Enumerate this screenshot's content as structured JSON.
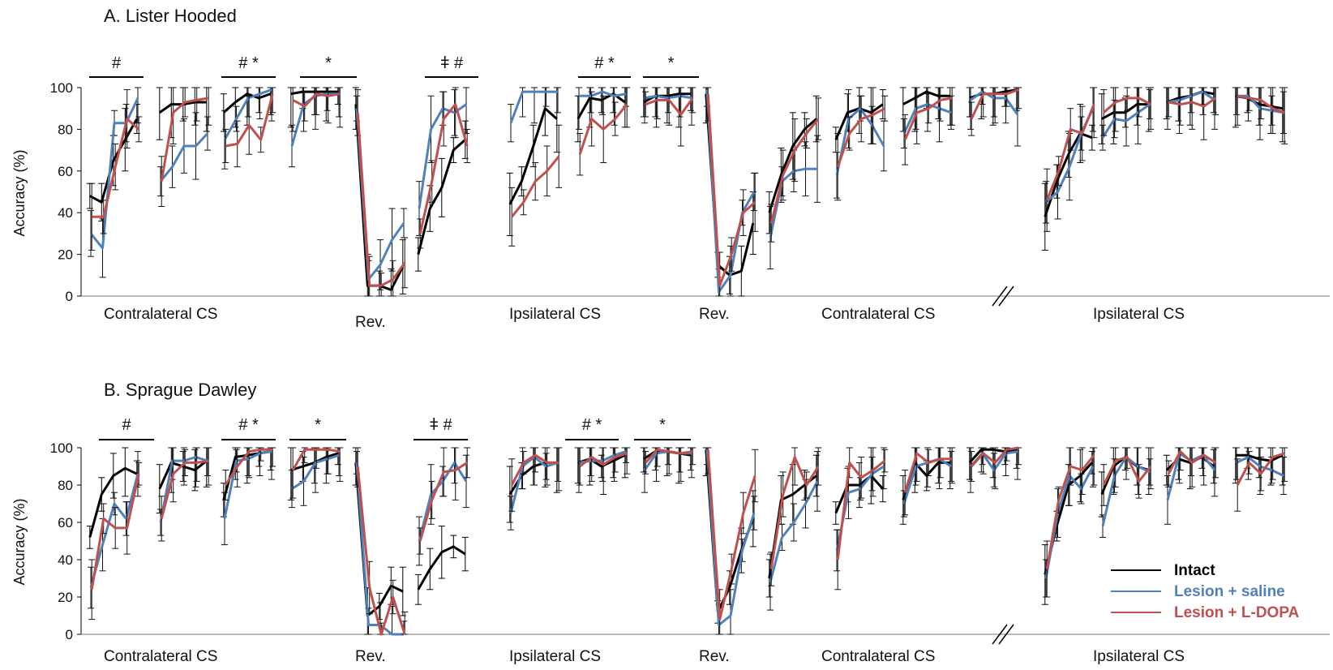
{
  "colors": {
    "intact": "#000000",
    "saline": "#4f81bd",
    "ldopa": "#c0504d",
    "axis": "#000000"
  },
  "legend": [
    {
      "key": "intact",
      "label": "Intact"
    },
    {
      "key": "saline",
      "label": "Lesion + saline"
    },
    {
      "key": "ldopa",
      "label": "Lesion + L-DOPA"
    }
  ],
  "chart_data": [
    {
      "type": "line",
      "title": "A. Lister Hooded",
      "ylabel": "Accuracy (%)",
      "ylim": [
        0,
        100
      ],
      "yticks": [
        "0",
        "20",
        "40",
        "60",
        "80",
        "100"
      ],
      "phases": [
        "Contralateral CS",
        "Rev.",
        "Ipsilateral CS",
        "Rev.",
        "Contralateral CS",
        "Ipsilateral CS"
      ],
      "significance": [
        "#",
        "# *",
        "*",
        "ǂ #",
        "# *",
        "*"
      ],
      "axis_break": true,
      "blocks": [
        {
          "intact": [
            48,
            45,
            65,
            75,
            85
          ],
          "saline": [
            30,
            23,
            83,
            83,
            95
          ],
          "ldopa": [
            38,
            38,
            62,
            85,
            80
          ]
        },
        {
          "intact": [
            88,
            92,
            92,
            93,
            93
          ],
          "saline": [
            55,
            62,
            72,
            72,
            78
          ],
          "ldopa": [
            55,
            88,
            93,
            94,
            95
          ]
        },
        {
          "intact": [
            88,
            93,
            97,
            95,
            97
          ],
          "saline": [
            75,
            85,
            95,
            97,
            99
          ],
          "ldopa": [
            72,
            73,
            82,
            75,
            97
          ]
        },
        {
          "intact": [
            97,
            98,
            98,
            98,
            98
          ],
          "saline": [
            72,
            92,
            96,
            97,
            97
          ],
          "ldopa": [
            94,
            91,
            97,
            96,
            97
          ]
        },
        {
          "intact": [
            92,
            5,
            5,
            3,
            14
          ],
          "saline": [
            90,
            8,
            15,
            27,
            35
          ],
          "ldopa": [
            88,
            5,
            5,
            8,
            16
          ]
        },
        {
          "intact": [
            20,
            42,
            52,
            70,
            75
          ],
          "saline": [
            42,
            80,
            90,
            88,
            92
          ],
          "ldopa": [
            30,
            55,
            85,
            92,
            72
          ]
        },
        {
          "intact": [
            44,
            55,
            72,
            90,
            85
          ],
          "saline": [
            83,
            98,
            98,
            98,
            98
          ],
          "ldopa": [
            38,
            45,
            55,
            60,
            67
          ]
        },
        {
          "intact": [
            85,
            95,
            94,
            97,
            93
          ],
          "saline": [
            96,
            96,
            98,
            96,
            97
          ],
          "ldopa": [
            68,
            85,
            80,
            85,
            92
          ]
        },
        {
          "intact": [
            93,
            96,
            96,
            97,
            97
          ],
          "saline": [
            95,
            96,
            95,
            96,
            95
          ],
          "ldopa": [
            92,
            94,
            94,
            87,
            95
          ]
        },
        {
          "intact": [
            97,
            15,
            10,
            12,
            35
          ],
          "saline": [
            99,
            2,
            10,
            40,
            50
          ],
          "ldopa": [
            97,
            5,
            20,
            40,
            45
          ]
        },
        {
          "intact": [
            40,
            58,
            72,
            80,
            85
          ],
          "saline": [
            28,
            55,
            60,
            61,
            61
          ],
          "ldopa": [
            35,
            58,
            70,
            78,
            85
          ]
        },
        {
          "intact": [
            75,
            88,
            90,
            88,
            92
          ],
          "saline": [
            58,
            85,
            90,
            82,
            72
          ],
          "ldopa": [
            62,
            78,
            85,
            87,
            90
          ]
        },
        {
          "intact": [
            92,
            95,
            98,
            96,
            96
          ],
          "saline": [
            78,
            90,
            92,
            90,
            88
          ],
          "ldopa": [
            75,
            88,
            90,
            94,
            95
          ]
        },
        {
          "intact": [
            95,
            97,
            97,
            98,
            99
          ],
          "saline": [
            94,
            98,
            95,
            95,
            87
          ],
          "ldopa": [
            85,
            97,
            97,
            97,
            99
          ]
        },
        {
          "intact": [
            38,
            55,
            68,
            78,
            76
          ],
          "saline": [
            45,
            50,
            62,
            78,
            90
          ],
          "ldopa": [
            46,
            60,
            80,
            78,
            92
          ]
        },
        {
          "intact": [
            85,
            88,
            88,
            92,
            92
          ],
          "saline": [
            76,
            85,
            84,
            88,
            92
          ],
          "ldopa": [
            88,
            93,
            95,
            95,
            92
          ]
        },
        {
          "intact": [
            93,
            95,
            96,
            98,
            97
          ],
          "saline": [
            93,
            94,
            96,
            98,
            94
          ],
          "ldopa": [
            93,
            92,
            93,
            91,
            95
          ]
        },
        {
          "intact": [
            96,
            95,
            92,
            91,
            90
          ],
          "saline": [
            96,
            96,
            90,
            89,
            88
          ],
          "ldopa": [
            96,
            95,
            94,
            90,
            88
          ]
        }
      ]
    },
    {
      "type": "line",
      "title": "B. Sprague Dawley",
      "ylabel": "Accuracy (%)",
      "ylim": [
        0,
        100
      ],
      "yticks": [
        "0",
        "20",
        "40",
        "60",
        "80",
        "100"
      ],
      "phases": [
        "Contralateral CS",
        "Rev.",
        "Ipsilateral CS",
        "Rev.",
        "Contralateral CS",
        "Ipsilateral CS"
      ],
      "significance": [
        "#",
        "# *",
        "*",
        "ǂ #",
        "# *",
        "*"
      ],
      "axis_break": true,
      "blocks": [
        {
          "intact": [
            52,
            75,
            85,
            89,
            86
          ],
          "saline": [
            25,
            48,
            70,
            62,
            86
          ],
          "ldopa": [
            24,
            62,
            57,
            57,
            86
          ]
        },
        {
          "intact": [
            78,
            92,
            90,
            88,
            93
          ],
          "saline": [
            60,
            93,
            93,
            95,
            93
          ],
          "ldopa": [
            62,
            86,
            92,
            92,
            93
          ]
        },
        {
          "intact": [
            72,
            95,
            96,
            97,
            98
          ],
          "saline": [
            62,
            93,
            94,
            97,
            98
          ],
          "ldopa": [
            80,
            90,
            98,
            99,
            99
          ]
        },
        {
          "intact": [
            88,
            90,
            92,
            95,
            97
          ],
          "saline": [
            78,
            82,
            92,
            94,
            96
          ],
          "ldopa": [
            88,
            99,
            99,
            99,
            98
          ]
        },
        {
          "intact": [
            92,
            10,
            15,
            26,
            23
          ],
          "saline": [
            92,
            5,
            5,
            0,
            0
          ],
          "ldopa": [
            90,
            25,
            0,
            20,
            0
          ]
        },
        {
          "intact": [
            24,
            35,
            44,
            47,
            43
          ],
          "saline": [
            50,
            75,
            82,
            92,
            82
          ],
          "ldopa": [
            50,
            72,
            87,
            88,
            92
          ]
        },
        {
          "intact": [
            75,
            85,
            90,
            92,
            92
          ],
          "saline": [
            65,
            90,
            95,
            90,
            92
          ],
          "ldopa": [
            80,
            92,
            96,
            92,
            92
          ]
        },
        {
          "intact": [
            92,
            94,
            90,
            93,
            96
          ],
          "saline": [
            92,
            93,
            93,
            96,
            98
          ],
          "ldopa": [
            90,
            95,
            91,
            95,
            97
          ]
        },
        {
          "intact": [
            94,
            98,
            98,
            97,
            96
          ],
          "saline": [
            88,
            97,
            98,
            97,
            97
          ],
          "ldopa": [
            92,
            99,
            98,
            97,
            98
          ]
        },
        {
          "intact": [
            99,
            12,
            25,
            45,
            62
          ],
          "saline": [
            99,
            5,
            10,
            45,
            65
          ],
          "ldopa": [
            99,
            8,
            35,
            65,
            85
          ]
        },
        {
          "intact": [
            30,
            72,
            75,
            80,
            85
          ],
          "saline": [
            28,
            52,
            60,
            70,
            82
          ],
          "ldopa": [
            35,
            75,
            95,
            80,
            90
          ]
        },
        {
          "intact": [
            65,
            80,
            80,
            85,
            78
          ],
          "saline": [
            45,
            76,
            78,
            86,
            90
          ],
          "ldopa": [
            40,
            92,
            84,
            88,
            93
          ]
        },
        {
          "intact": [
            72,
            92,
            85,
            92,
            92
          ],
          "saline": [
            70,
            90,
            92,
            94,
            90
          ],
          "ldopa": [
            76,
            97,
            92,
            94,
            94
          ]
        },
        {
          "intact": [
            92,
            99,
            99,
            98,
            99
          ],
          "saline": [
            90,
            97,
            88,
            97,
            98
          ],
          "ldopa": [
            90,
            97,
            92,
            99,
            100
          ]
        },
        {
          "intact": [
            32,
            58,
            80,
            85,
            92
          ],
          "saline": [
            30,
            65,
            85,
            78,
            90
          ],
          "ldopa": [
            35,
            72,
            90,
            88,
            96
          ]
        },
        {
          "intact": [
            75,
            90,
            95,
            90,
            88
          ],
          "saline": [
            58,
            85,
            95,
            90,
            87
          ],
          "ldopa": [
            80,
            93,
            95,
            82,
            90
          ]
        },
        {
          "intact": [
            88,
            94,
            92,
            95,
            90
          ],
          "saline": [
            72,
            97,
            93,
            96,
            88
          ],
          "ldopa": [
            86,
            98,
            92,
            96,
            92
          ]
        },
        {
          "intact": [
            96,
            96,
            94,
            93,
            96
          ],
          "saline": [
            92,
            95,
            90,
            88,
            85
          ],
          "ldopa": [
            80,
            92,
            86,
            95,
            97
          ]
        }
      ]
    }
  ]
}
